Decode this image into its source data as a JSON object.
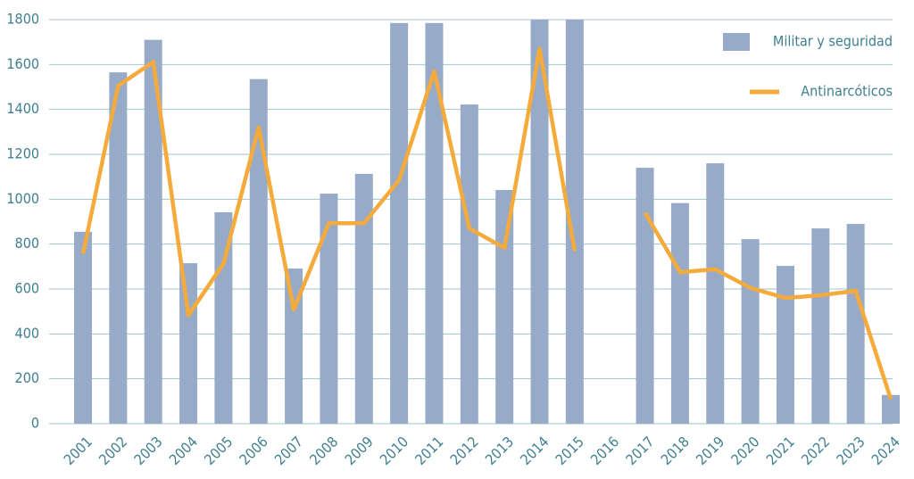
{
  "chart_data": {
    "type": "bar_line",
    "categories": [
      "2001",
      "2002",
      "2003",
      "2004",
      "2005",
      "2006",
      "2007",
      "2008",
      "2009",
      "2010",
      "2011",
      "2012",
      "2013",
      "2014",
      "2015",
      "2016",
      "2017",
      "2018",
      "2019",
      "2020",
      "2021",
      "2022",
      "2023",
      "2024"
    ],
    "series": [
      {
        "name": "Militar y seguridad",
        "type": "bar",
        "color": "#97abc9",
        "values": [
          855,
          1565,
          1710,
          715,
          942,
          1535,
          691,
          1025,
          1113,
          1785,
          1785,
          1422,
          1041,
          1800,
          1800,
          null,
          1140,
          983,
          1160,
          822,
          703,
          870,
          890,
          128
        ]
      },
      {
        "name": "Antinarcóticos",
        "type": "line",
        "color": "#f5aa3c",
        "values": [
          757,
          1505,
          1612,
          483,
          713,
          1320,
          508,
          893,
          893,
          1085,
          1570,
          870,
          783,
          1670,
          770,
          null,
          940,
          675,
          688,
          605,
          560,
          572,
          592,
          110
        ]
      }
    ],
    "ylim": [
      0,
      1800
    ],
    "yticks": [
      0,
      200,
      400,
      600,
      800,
      1000,
      1200,
      1400,
      1600,
      1800
    ],
    "grid": true,
    "legend": "top-right"
  }
}
